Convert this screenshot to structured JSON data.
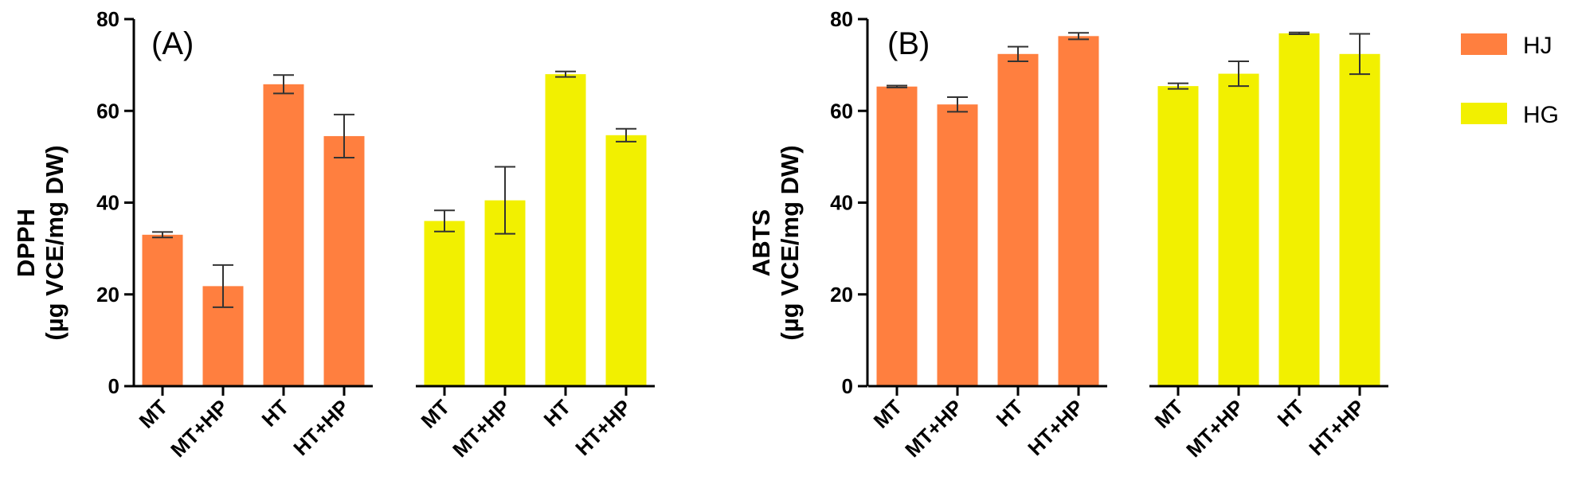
{
  "chart_data": [
    {
      "type": "bar",
      "panel_label": "(A)",
      "ylabel_line1": "DPPH",
      "ylabel_line2": "(µg VCE/mg DW)",
      "ylim": [
        0,
        80
      ],
      "yticks": [
        0,
        20,
        40,
        60,
        80
      ],
      "groups": [
        {
          "series": "HJ",
          "categories": [
            "MT",
            "MT+HP",
            "HT",
            "HT+HP"
          ],
          "values": [
            33.0,
            21.8,
            65.8,
            54.5
          ],
          "errors": [
            0.6,
            4.6,
            2.0,
            4.7
          ]
        },
        {
          "series": "HG",
          "categories": [
            "MT",
            "MT+HP",
            "HT",
            "HT+HP"
          ],
          "values": [
            36.0,
            40.5,
            68.0,
            54.7
          ],
          "errors": [
            2.3,
            7.3,
            0.6,
            1.4
          ]
        }
      ]
    },
    {
      "type": "bar",
      "panel_label": "(B)",
      "ylabel_line1": "ABTS",
      "ylabel_line2": "(µg VCE/mg DW)",
      "ylim": [
        0,
        80
      ],
      "yticks": [
        0,
        20,
        40,
        60,
        80
      ],
      "groups": [
        {
          "series": "HJ",
          "categories": [
            "MT",
            "MT+HP",
            "HT",
            "HT+HP"
          ],
          "values": [
            65.3,
            61.4,
            72.4,
            76.3
          ],
          "errors": [
            0.2,
            1.6,
            1.6,
            0.7
          ]
        },
        {
          "series": "HG",
          "categories": [
            "MT",
            "MT+HP",
            "HT",
            "HT+HP"
          ],
          "values": [
            65.4,
            68.1,
            76.9,
            72.4
          ],
          "errors": [
            0.6,
            2.7,
            0.2,
            4.4
          ]
        }
      ]
    }
  ],
  "legend": {
    "placement": "top-right",
    "items": [
      {
        "name": "HJ",
        "color": "#FF7F3F"
      },
      {
        "name": "HG",
        "color": "#F2F000"
      }
    ]
  }
}
